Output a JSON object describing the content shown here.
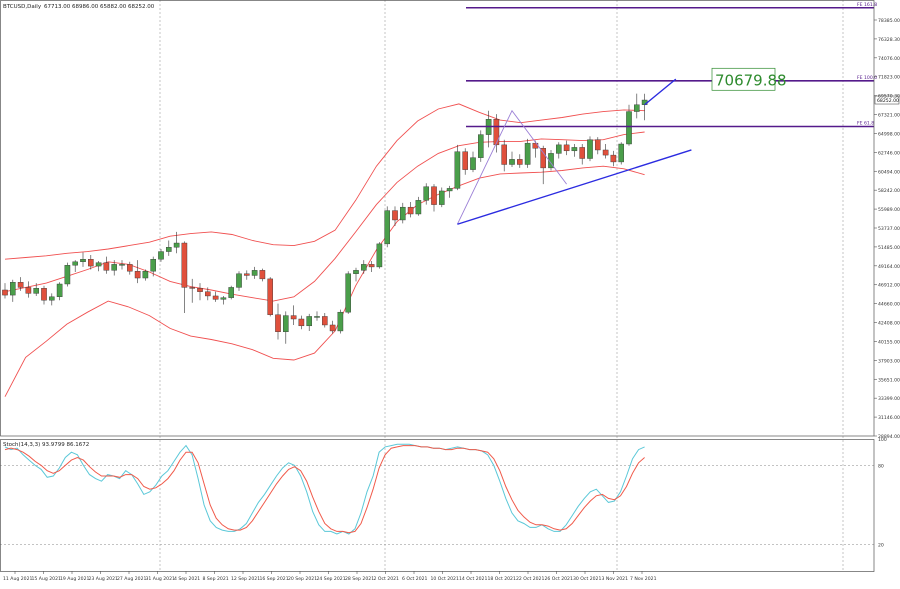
{
  "header": {
    "symbol_label": "BTCUSD,Daily",
    "ohlc_label": "67713.00 68986.00 65882.00 68252.00"
  },
  "price_callout": "70679.88",
  "current_price_label": "68252.00",
  "fib_labels": [
    "FE 161.8",
    "FE 100.0",
    "FE 61.8"
  ],
  "stoch_label": "Stoch(14,3,3) 93.9799 86.1672",
  "colors": {
    "bull_candle": "#4a9e4a",
    "bear_candle": "#e0503c",
    "bollinger": "#f05050",
    "fib_line": "#551a8b",
    "trendline": "#2b2be0",
    "stoch_main": "#5bc8d8",
    "stoch_signal": "#f05a4a",
    "grid": "#a0a0a0",
    "callout_text": "#2e8b2e"
  },
  "chart_data": [
    {
      "type": "candlestick",
      "title": "BTCUSD,Daily",
      "x_tick_labels": [
        "11 Aug 2021",
        "15 Aug 2021",
        "19 Aug 2021",
        "23 Aug 2021",
        "27 Aug 2021",
        "31 Aug 2021",
        "4 Sep 2021",
        "8 Sep 2021",
        "12 Sep 2021",
        "16 Sep 2021",
        "20 Sep 2021",
        "24 Sep 2021",
        "28 Sep 2021",
        "2 Oct 2021",
        "6 Oct 2021",
        "10 Oct 2021",
        "14 Oct 2021",
        "18 Oct 2021",
        "22 Oct 2021",
        "26 Oct 2021",
        "30 Oct 2021",
        "3 Nov 2021",
        "7 Nov 2021"
      ],
      "y_tick_labels": [
        "78385.00",
        "76328.30",
        "74076.00",
        "71823.00",
        "69570.30",
        "67321.00",
        "64998.00",
        "62746.00",
        "60494.00",
        "58242.00",
        "55989.00",
        "53737.00",
        "51485.00",
        "49164.00",
        "46912.00",
        "44660.00",
        "42408.00",
        "40155.00",
        "37903.00",
        "35651.00",
        "33399.00",
        "31146.00",
        "28894.00"
      ],
      "ylim": [
        28894,
        79500
      ],
      "candles": [
        {
          "o": 46000,
          "h": 46800,
          "l": 45000,
          "c": 45400
        },
        {
          "o": 45400,
          "h": 47200,
          "l": 44600,
          "c": 46900
        },
        {
          "o": 46900,
          "h": 47500,
          "l": 45900,
          "c": 46300
        },
        {
          "o": 46300,
          "h": 47000,
          "l": 45100,
          "c": 45600
        },
        {
          "o": 45600,
          "h": 46800,
          "l": 45300,
          "c": 46200
        },
        {
          "o": 46200,
          "h": 46500,
          "l": 44300,
          "c": 44800
        },
        {
          "o": 44800,
          "h": 45600,
          "l": 44200,
          "c": 45200
        },
        {
          "o": 45200,
          "h": 46900,
          "l": 44800,
          "c": 46700
        },
        {
          "o": 46700,
          "h": 49200,
          "l": 46400,
          "c": 48900
        },
        {
          "o": 48900,
          "h": 49500,
          "l": 48100,
          "c": 49300
        },
        {
          "o": 49300,
          "h": 50400,
          "l": 48700,
          "c": 49600
        },
        {
          "o": 49600,
          "h": 50100,
          "l": 48400,
          "c": 48800
        },
        {
          "o": 48800,
          "h": 49400,
          "l": 48200,
          "c": 49200
        },
        {
          "o": 49200,
          "h": 49900,
          "l": 47900,
          "c": 48300
        },
        {
          "o": 48300,
          "h": 49500,
          "l": 47700,
          "c": 49000
        },
        {
          "o": 49000,
          "h": 49500,
          "l": 48400,
          "c": 49000
        },
        {
          "o": 49000,
          "h": 49300,
          "l": 47800,
          "c": 48200
        },
        {
          "o": 48200,
          "h": 49500,
          "l": 46800,
          "c": 47400
        },
        {
          "o": 47400,
          "h": 48400,
          "l": 47100,
          "c": 48200
        },
        {
          "o": 48200,
          "h": 49900,
          "l": 47600,
          "c": 49600
        },
        {
          "o": 49600,
          "h": 50800,
          "l": 49300,
          "c": 50500
        },
        {
          "o": 50500,
          "h": 51800,
          "l": 50000,
          "c": 51000
        },
        {
          "o": 51000,
          "h": 52800,
          "l": 50300,
          "c": 51500
        },
        {
          "o": 51500,
          "h": 51700,
          "l": 43300,
          "c": 46300
        },
        {
          "o": 46300,
          "h": 47300,
          "l": 44500,
          "c": 46200
        },
        {
          "o": 46200,
          "h": 46800,
          "l": 44800,
          "c": 45800
        },
        {
          "o": 45800,
          "h": 46300,
          "l": 44800,
          "c": 45300
        },
        {
          "o": 45300,
          "h": 45800,
          "l": 44600,
          "c": 44900
        },
        {
          "o": 44900,
          "h": 45300,
          "l": 44300,
          "c": 45100
        },
        {
          "o": 45100,
          "h": 46500,
          "l": 44900,
          "c": 46300
        },
        {
          "o": 46300,
          "h": 48200,
          "l": 45900,
          "c": 47900
        },
        {
          "o": 47900,
          "h": 48300,
          "l": 47200,
          "c": 47700
        },
        {
          "o": 47700,
          "h": 48700,
          "l": 47300,
          "c": 48300
        },
        {
          "o": 48300,
          "h": 48500,
          "l": 47000,
          "c": 47300
        },
        {
          "o": 47300,
          "h": 47500,
          "l": 42900,
          "c": 43100
        },
        {
          "o": 43100,
          "h": 44400,
          "l": 40200,
          "c": 41100
        },
        {
          "o": 41100,
          "h": 43500,
          "l": 39700,
          "c": 43000
        },
        {
          "o": 43000,
          "h": 44200,
          "l": 41900,
          "c": 42600
        },
        {
          "o": 42600,
          "h": 43000,
          "l": 41400,
          "c": 41800
        },
        {
          "o": 41800,
          "h": 43200,
          "l": 41200,
          "c": 42900
        },
        {
          "o": 42900,
          "h": 43500,
          "l": 42400,
          "c": 42900
        },
        {
          "o": 42900,
          "h": 43300,
          "l": 41600,
          "c": 41900
        },
        {
          "o": 41900,
          "h": 42400,
          "l": 40900,
          "c": 41200
        },
        {
          "o": 41200,
          "h": 43700,
          "l": 40900,
          "c": 43400
        },
        {
          "o": 43400,
          "h": 48200,
          "l": 43200,
          "c": 47900
        },
        {
          "o": 47900,
          "h": 48600,
          "l": 47000,
          "c": 48300
        },
        {
          "o": 48300,
          "h": 49500,
          "l": 47900,
          "c": 49000
        },
        {
          "o": 49000,
          "h": 49400,
          "l": 48100,
          "c": 48700
        },
        {
          "o": 48700,
          "h": 51600,
          "l": 48500,
          "c": 51400
        },
        {
          "o": 51400,
          "h": 55800,
          "l": 51000,
          "c": 55300
        },
        {
          "o": 55300,
          "h": 55800,
          "l": 53500,
          "c": 54200
        },
        {
          "o": 54200,
          "h": 56200,
          "l": 53800,
          "c": 55700
        },
        {
          "o": 55700,
          "h": 56300,
          "l": 54500,
          "c": 54900
        },
        {
          "o": 54900,
          "h": 56900,
          "l": 54700,
          "c": 56500
        },
        {
          "o": 56500,
          "h": 58500,
          "l": 56000,
          "c": 58100
        },
        {
          "o": 58100,
          "h": 58400,
          "l": 55200,
          "c": 56000
        },
        {
          "o": 56000,
          "h": 58000,
          "l": 55700,
          "c": 57600
        },
        {
          "o": 57600,
          "h": 58200,
          "l": 56800,
          "c": 57900
        },
        {
          "o": 57900,
          "h": 63000,
          "l": 57700,
          "c": 62200
        },
        {
          "o": 62200,
          "h": 62600,
          "l": 59500,
          "c": 60100
        },
        {
          "o": 60100,
          "h": 62200,
          "l": 59800,
          "c": 61500
        },
        {
          "o": 61500,
          "h": 64700,
          "l": 61000,
          "c": 64200
        },
        {
          "o": 64200,
          "h": 67000,
          "l": 62700,
          "c": 66000
        },
        {
          "o": 66000,
          "h": 66600,
          "l": 62100,
          "c": 63000
        },
        {
          "o": 63000,
          "h": 63600,
          "l": 59900,
          "c": 60700
        },
        {
          "o": 60700,
          "h": 62200,
          "l": 60400,
          "c": 61300
        },
        {
          "o": 61300,
          "h": 61900,
          "l": 60300,
          "c": 60700
        },
        {
          "o": 60700,
          "h": 63700,
          "l": 60300,
          "c": 63200
        },
        {
          "o": 63200,
          "h": 63500,
          "l": 61500,
          "c": 62600
        },
        {
          "o": 62600,
          "h": 62900,
          "l": 58400,
          "c": 60300
        },
        {
          "o": 60300,
          "h": 62400,
          "l": 60000,
          "c": 62000
        },
        {
          "o": 62000,
          "h": 63300,
          "l": 61400,
          "c": 63000
        },
        {
          "o": 63000,
          "h": 63500,
          "l": 61800,
          "c": 62300
        },
        {
          "o": 62300,
          "h": 63100,
          "l": 61600,
          "c": 62700
        },
        {
          "o": 62700,
          "h": 63100,
          "l": 60700,
          "c": 61400
        },
        {
          "o": 61400,
          "h": 64000,
          "l": 61100,
          "c": 63600
        },
        {
          "o": 63600,
          "h": 63900,
          "l": 61900,
          "c": 62400
        },
        {
          "o": 62400,
          "h": 63100,
          "l": 61400,
          "c": 61800
        },
        {
          "o": 61800,
          "h": 62300,
          "l": 60500,
          "c": 61000
        },
        {
          "o": 61000,
          "h": 63300,
          "l": 60700,
          "c": 63100
        },
        {
          "o": 63100,
          "h": 67700,
          "l": 62900,
          "c": 66900
        },
        {
          "o": 66900,
          "h": 69000,
          "l": 66100,
          "c": 67700
        },
        {
          "o": 67700,
          "h": 68986,
          "l": 65882,
          "c": 68252
        }
      ],
      "bollinger": {
        "upper": [
          49600,
          49800,
          50000,
          50300,
          50500,
          50800,
          51200,
          51600,
          52300,
          52600,
          52800,
          52500,
          51800,
          51300,
          51200,
          51700,
          53000,
          56500,
          60500,
          63500,
          65800,
          67200,
          67800,
          66800,
          65900,
          65600,
          65900,
          66200,
          66600,
          66900,
          67100,
          67000
        ],
        "middle": [
          45800,
          46300,
          46800,
          47600,
          48400,
          49300,
          49000,
          48100,
          47000,
          46400,
          46000,
          45500,
          45100,
          44700,
          45200,
          47000,
          49700,
          52800,
          56000,
          58600,
          60500,
          62000,
          62900,
          63300,
          63400,
          63400,
          63700,
          63600,
          63500,
          63600,
          64200,
          64500
        ],
        "lower": [
          33500,
          38100,
          40000,
          42000,
          43400,
          44700,
          44000,
          43000,
          41500,
          40600,
          40200,
          39700,
          39000,
          38000,
          37800,
          38600,
          41200,
          46500,
          50700,
          54000,
          56000,
          57200,
          58200,
          59100,
          59600,
          59700,
          59800,
          60000,
          60300,
          60500,
          60200,
          59500
        ]
      },
      "fibonacci_levels": [
        {
          "label": "FE 161.8",
          "value": 79060
        },
        {
          "label": "FE 100.0",
          "value": 70500
        },
        {
          "label": "FE 61.8",
          "value": 65150
        }
      ],
      "trendlines": [
        {
          "from": {
            "bar": 58,
            "price": 53700
          },
          "to": {
            "bar": 88,
            "price": 62400
          }
        },
        {
          "from": {
            "bar": 82,
            "price": 67700
          },
          "to": {
            "bar": 86,
            "price": 70700
          }
        }
      ],
      "zigzag": [
        {
          "bar": 58,
          "price": 53700
        },
        {
          "bar": 65,
          "price": 67000
        },
        {
          "bar": 72,
          "price": 58400
        }
      ],
      "callout": {
        "value": 70679.88
      }
    },
    {
      "type": "line",
      "title": "Stoch(14,3,3) 93.9799 86.1672",
      "y_tick_labels": [
        "100",
        "80",
        "20"
      ],
      "ylim": [
        0,
        100
      ],
      "series": [
        {
          "name": "",
          "values": [
            94,
            92,
            93,
            88,
            84,
            80,
            77,
            71,
            72,
            78,
            86,
            90,
            88,
            80,
            73,
            70,
            68,
            73,
            72,
            70,
            76,
            73,
            66,
            58,
            60,
            65,
            72,
            76,
            83,
            90,
            95,
            88,
            70,
            50,
            38,
            33,
            31,
            30,
            30,
            32,
            36,
            44,
            52,
            58,
            65,
            72,
            78,
            82,
            80,
            72,
            60,
            45,
            35,
            30,
            30,
            28,
            30,
            28,
            32,
            44,
            60,
            72,
            90,
            94,
            95,
            96,
            96,
            96,
            95,
            94,
            94,
            93,
            93,
            92,
            93,
            94,
            93,
            92,
            92,
            91,
            88,
            80,
            68,
            55,
            44,
            38,
            36,
            33,
            33,
            35,
            32,
            30,
            30,
            35,
            42,
            49,
            55,
            60,
            62,
            57,
            52,
            53,
            60,
            72,
            85,
            92,
            94
          ]
        },
        {
          "name": "",
          "values": [
            92,
            93,
            92,
            90,
            87,
            83,
            80,
            76,
            74,
            76,
            80,
            84,
            86,
            84,
            79,
            75,
            72,
            72,
            72,
            71,
            73,
            73,
            70,
            64,
            62,
            63,
            66,
            70,
            76,
            84,
            90,
            90,
            82,
            66,
            50,
            40,
            35,
            32,
            31,
            31,
            33,
            38,
            45,
            52,
            59,
            66,
            72,
            77,
            79,
            76,
            68,
            56,
            45,
            36,
            32,
            30,
            30,
            29,
            30,
            36,
            48,
            62,
            78,
            88,
            93,
            94,
            95,
            95,
            95,
            94,
            94,
            93,
            93,
            92,
            92,
            93,
            93,
            92,
            92,
            91,
            90,
            85,
            76,
            64,
            54,
            46,
            41,
            37,
            35,
            35,
            34,
            32,
            31,
            32,
            36,
            42,
            48,
            53,
            57,
            58,
            55,
            54,
            57,
            64,
            74,
            82,
            86
          ]
        }
      ]
    }
  ]
}
